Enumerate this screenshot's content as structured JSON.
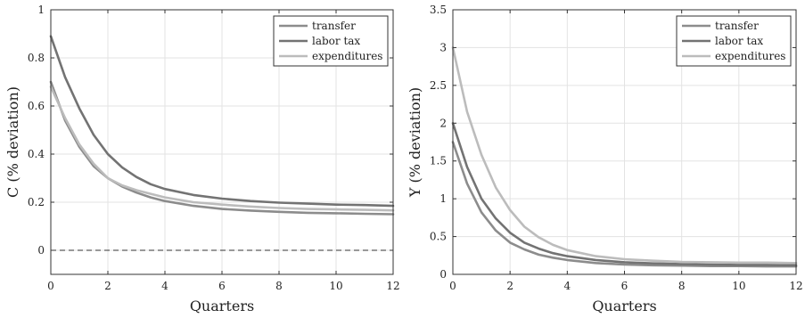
{
  "chart_data": [
    {
      "type": "line",
      "xlabel": "Quarters",
      "ylabel": "C (% deviation)",
      "xlim": [
        0,
        12
      ],
      "ylim": [
        -0.1,
        1
      ],
      "xticks": [
        "0",
        "2",
        "4",
        "6",
        "8",
        "10",
        "12"
      ],
      "yticks": [
        "0",
        "0.2",
        "0.4",
        "0.6",
        "0.8",
        "1"
      ],
      "grid": true,
      "legend_position": "top-right",
      "zero_line": true,
      "x": [
        0,
        0.5,
        1,
        1.5,
        2,
        2.5,
        3,
        3.5,
        4,
        5,
        6,
        7,
        8,
        9,
        10,
        11,
        12
      ],
      "series": [
        {
          "name": "transfer",
          "color": "#8c8c8c",
          "values": [
            0.7,
            0.54,
            0.43,
            0.35,
            0.3,
            0.265,
            0.24,
            0.22,
            0.205,
            0.185,
            0.172,
            0.165,
            0.16,
            0.156,
            0.154,
            0.152,
            0.15
          ]
        },
        {
          "name": "labor tax",
          "color": "#737373",
          "values": [
            0.89,
            0.72,
            0.59,
            0.48,
            0.4,
            0.345,
            0.305,
            0.275,
            0.255,
            0.23,
            0.215,
            0.205,
            0.198,
            0.194,
            0.19,
            0.188,
            0.185
          ]
        },
        {
          "name": "expenditures",
          "color": "#bcbcbc",
          "values": [
            0.68,
            0.55,
            0.44,
            0.36,
            0.3,
            0.27,
            0.25,
            0.235,
            0.22,
            0.2,
            0.19,
            0.182,
            0.176,
            0.172,
            0.17,
            0.168,
            0.166
          ]
        }
      ]
    },
    {
      "type": "line",
      "xlabel": "Quarters",
      "ylabel": "Y (% deviation)",
      "xlim": [
        0,
        12
      ],
      "ylim": [
        0,
        3.5
      ],
      "xticks": [
        "0",
        "2",
        "4",
        "6",
        "8",
        "10",
        "12"
      ],
      "yticks": [
        "0",
        "0.5",
        "1",
        "1.5",
        "2",
        "2.5",
        "3",
        "3.5"
      ],
      "grid": true,
      "legend_position": "top-right",
      "zero_line": true,
      "x": [
        0,
        0.5,
        1,
        1.5,
        2,
        2.5,
        3,
        3.5,
        4,
        5,
        6,
        7,
        8,
        9,
        10,
        11,
        12
      ],
      "series": [
        {
          "name": "transfer",
          "color": "#8c8c8c",
          "values": [
            1.75,
            1.2,
            0.82,
            0.58,
            0.42,
            0.33,
            0.26,
            0.22,
            0.19,
            0.15,
            0.13,
            0.12,
            0.115,
            0.11,
            0.11,
            0.105,
            0.105
          ]
        },
        {
          "name": "labor tax",
          "color": "#737373",
          "values": [
            2.0,
            1.42,
            1.0,
            0.74,
            0.55,
            0.42,
            0.34,
            0.28,
            0.24,
            0.19,
            0.16,
            0.145,
            0.135,
            0.13,
            0.125,
            0.125,
            0.12
          ]
        },
        {
          "name": "expenditures",
          "color": "#bcbcbc",
          "values": [
            3.0,
            2.15,
            1.58,
            1.15,
            0.85,
            0.63,
            0.49,
            0.39,
            0.32,
            0.24,
            0.2,
            0.18,
            0.165,
            0.16,
            0.155,
            0.155,
            0.15
          ]
        }
      ]
    }
  ]
}
